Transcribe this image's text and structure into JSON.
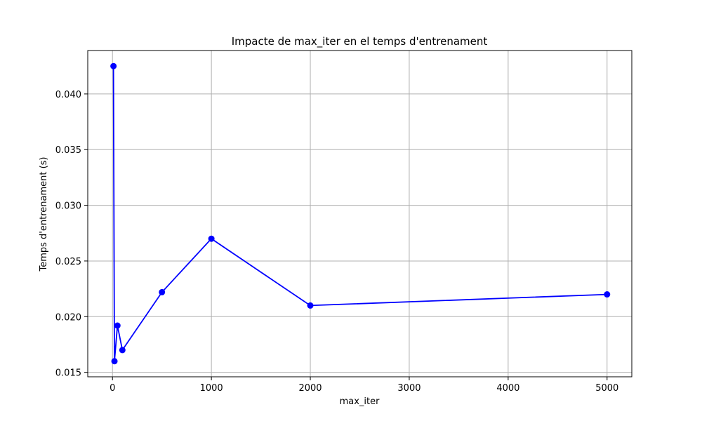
{
  "chart_data": {
    "type": "line",
    "title": "Impacte de max_iter en el temps d'entrenament",
    "xlabel": "max_iter",
    "ylabel": "Temps d'entrenament (s)",
    "x": [
      10,
      20,
      50,
      100,
      500,
      1000,
      2000,
      5000
    ],
    "series": [
      {
        "values": [
          0.0425,
          0.016,
          0.0192,
          0.017,
          0.0222,
          0.027,
          0.021,
          0.022
        ],
        "color": "#0000ff",
        "marker": "circle"
      }
    ],
    "xlim": [
      -250,
      5250
    ],
    "ylim": [
      0.0146,
      0.0439
    ],
    "xticks": [
      0,
      1000,
      2000,
      3000,
      4000,
      5000
    ],
    "yticks": [
      0.015,
      0.02,
      0.025,
      0.03,
      0.035,
      0.04
    ],
    "ytick_labels": [
      "0.015",
      "0.020",
      "0.025",
      "0.030",
      "0.035",
      "0.040"
    ],
    "grid": true
  }
}
